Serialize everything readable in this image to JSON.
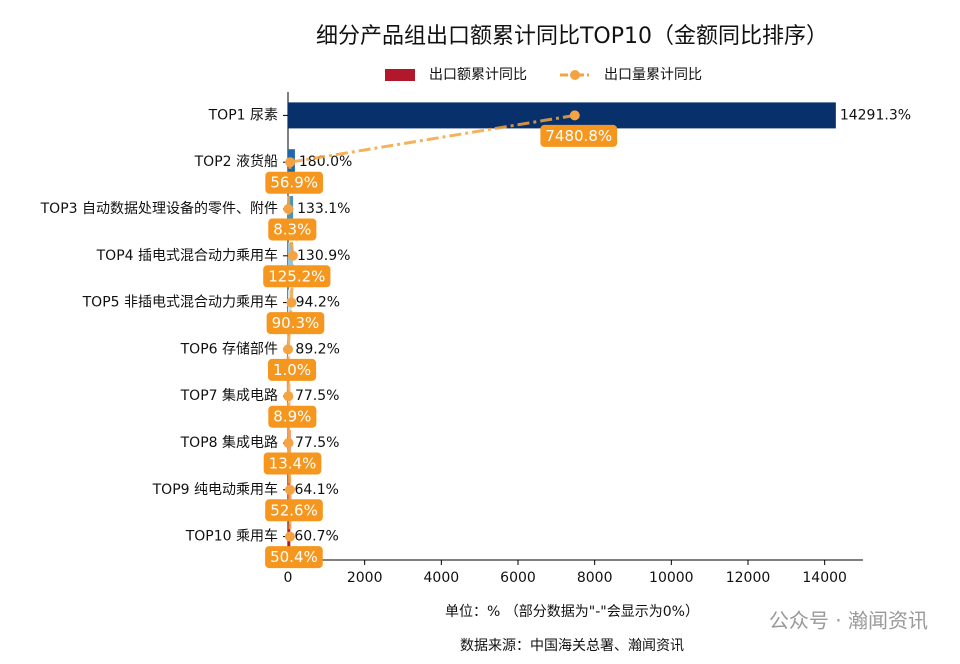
{
  "chart_data": {
    "type": "bar",
    "orientation": "horizontal",
    "title": "细分产品组出口额累计同比TOP10（金额同比排序）",
    "categories": [
      "TOP1 尿素",
      "TOP2 液货船",
      "TOP3 自动数据处理设备的零件、附件",
      "TOP4 插电式混合动力乘用车",
      "TOP5 非插电式混合动力乘用车",
      "TOP6 存储部件",
      "TOP7 集成电路",
      "TOP8 集成电路",
      "TOP9 纯电动乘用车",
      "TOP10 乘用车"
    ],
    "series": [
      {
        "name": "出口额累计同比",
        "type": "bar",
        "color": "#b2182b",
        "colors": [
          "#08306b",
          "#2166ac",
          "#4393c3",
          "#92c5de",
          "#d1e5f0",
          "#f7f7f7",
          "#fddbc7",
          "#f4a582",
          "#d6604d",
          "#b2182b"
        ],
        "values": [
          14291.3,
          180.0,
          133.1,
          130.9,
          94.2,
          89.2,
          77.5,
          77.5,
          64.1,
          60.7
        ],
        "value_labels": [
          "14291.3%",
          "180.0%",
          "133.1%",
          "130.9%",
          "94.2%",
          "89.2%",
          "77.5%",
          "77.5%",
          "64.1%",
          "60.7%"
        ]
      },
      {
        "name": "出口量累计同比",
        "type": "line",
        "color": "#f5a342",
        "values": [
          7480.8,
          56.9,
          8.3,
          125.2,
          90.3,
          1.0,
          8.9,
          13.4,
          52.6,
          50.4
        ],
        "value_labels": [
          "7480.8%",
          "56.9%",
          "8.3%",
          "125.2%",
          "90.3%",
          "1.0%",
          "8.9%",
          "13.4%",
          "52.6%",
          "50.4%"
        ]
      }
    ],
    "xlim": [
      0,
      15000
    ],
    "xticks": [
      0,
      2000,
      4000,
      6000,
      8000,
      10000,
      12000,
      14000
    ],
    "unit_note": "单位：%  （部分数据为\"-\"会显示为0%）",
    "source": "数据来源：中国海关总署、瀚闻资讯",
    "watermark": "公众号 · 瀚闻资讯"
  }
}
